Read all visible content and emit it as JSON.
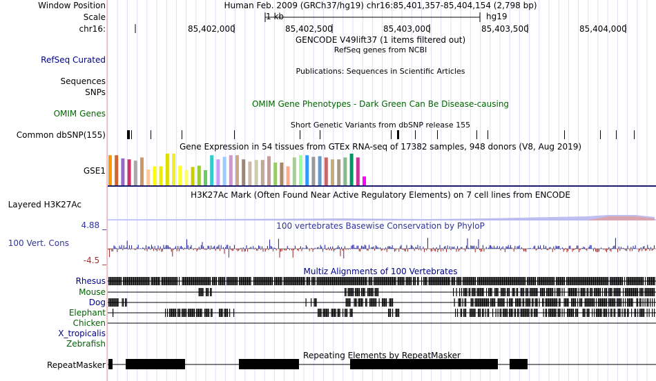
{
  "header": {
    "window_position_label": "Window Position",
    "window_position_value": "Human Feb. 2009 (GRCh37/hg19)   chr16:85,401,357-85,404,154 (2,798 bp)",
    "scale_label": "Scale",
    "scale_bar_text": "1 kb",
    "assembly": "hg19",
    "chrom_label": "chr16:",
    "ruler_ticks": [
      "85,402,000",
      "85,402,500",
      "85,403,000",
      "85,403,500",
      "85,404,000"
    ]
  },
  "tracks": {
    "gencode": {
      "title": "GENCODE V49lift37 (1 items filtered out)"
    },
    "refseq": {
      "label": "RefSeq Curated",
      "title": "RefSeq genes from NCBI"
    },
    "publications": {
      "title": "Publications: Sequences in Scientific Articles"
    },
    "sequences": {
      "label": "Sequences"
    },
    "snps": {
      "label": "SNPs"
    },
    "omim": {
      "label": "OMIM Genes",
      "title": "OMIM Gene Phenotypes - Dark Green Can Be Disease-causing"
    },
    "dbsnp": {
      "label": "Common dbSNP(155)",
      "title": "Short Genetic Variants from dbSNP release 155"
    },
    "gtex": {
      "label": "GSE1",
      "title": "Gene Expression in 54 tissues from GTEx RNA-seq of 17382 samples, 948 donors (V8, Aug 2019)",
      "tissue_colors": [
        "#ff9900",
        "#cc6633",
        "#9966cc",
        "#cc3366",
        "#aaaaaa",
        "#cc9966",
        "#ffcc99",
        "#ffff00",
        "#eeee00",
        "#dddd00",
        "#eeee33",
        "#ffff33",
        "#ffff66",
        "#cccc00",
        "#99cc33",
        "#66cc66",
        "#33cccc",
        "#cc99ff",
        "#99ccff",
        "#cc99cc",
        "#ccaa88",
        "#998877",
        "#ccbbaa",
        "#ccccaa",
        "#bbaa99",
        "#cc9999",
        "#99cc66",
        "#aa8866",
        "#ffaa88",
        "#aacc99",
        "#99ff99",
        "#3399ff",
        "#999999",
        "#6699cc",
        "#cc6666",
        "#ccaa77",
        "#aa9988",
        "#88bb88",
        "#009966",
        "#cc3399",
        "#ff00ff"
      ],
      "tissue_values": [
        0.95,
        0.95,
        0.85,
        0.82,
        0.78,
        0.88,
        0.5,
        0.6,
        0.6,
        1.0,
        1.0,
        0.62,
        0.48,
        0.58,
        0.62,
        0.48,
        0.95,
        0.82,
        0.9,
        0.95,
        0.95,
        0.82,
        0.75,
        0.8,
        0.8,
        0.92,
        0.72,
        0.72,
        0.6,
        0.88,
        0.95,
        0.95,
        0.9,
        0.92,
        0.88,
        0.82,
        0.82,
        0.88,
        1.0,
        0.88,
        0.28
      ]
    },
    "h3k27ac": {
      "label": "Layered H3K27Ac",
      "title": "H3K27Ac Mark (Often Found Near Active Regulatory Elements) on 7 cell lines from ENCODE"
    },
    "phylop": {
      "label": "100 Vert. Cons",
      "ymax": "4.88 _",
      "ymin": "-4.5 _",
      "title": "100 vertebrates Basewise Conservation by PhyloP"
    },
    "multiz": {
      "title": "Multiz Alignments of 100 Vertebrates",
      "species": [
        {
          "name": "Rhesus",
          "color": "#00008b"
        },
        {
          "name": "Mouse",
          "color": "#006400"
        },
        {
          "name": "Dog",
          "color": "#00008b"
        },
        {
          "name": "Elephant",
          "color": "#006400"
        },
        {
          "name": "Chicken",
          "color": "#006400"
        },
        {
          "name": "X_tropicalis",
          "color": "#00008b"
        },
        {
          "name": "Zebrafish",
          "color": "#006400"
        }
      ]
    },
    "repeatmasker": {
      "label": "RepeatMasker",
      "title": "Repeating Elements by RepeatMasker"
    }
  }
}
